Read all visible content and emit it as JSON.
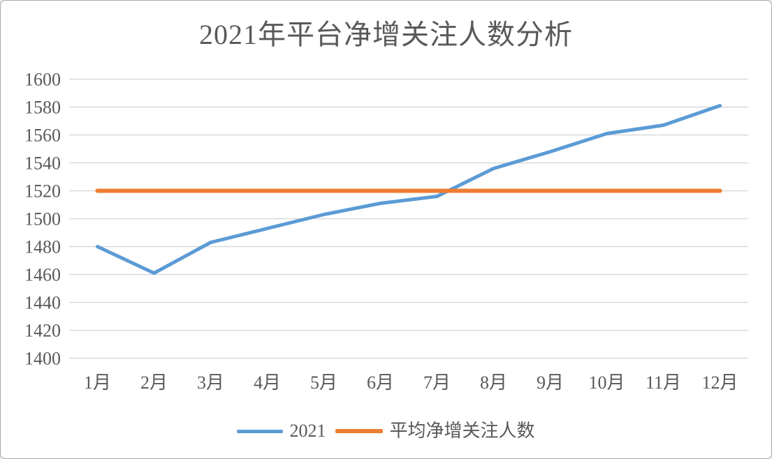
{
  "window": {
    "background": "#ffffff",
    "border_color": "#a9a9a9"
  },
  "chart_data": {
    "type": "line",
    "title": "2021年平台净增关注人数分析",
    "categories": [
      "1月",
      "2月",
      "3月",
      "4月",
      "5月",
      "6月",
      "7月",
      "8月",
      "9月",
      "10月",
      "11月",
      "12月"
    ],
    "series": [
      {
        "name": "2021",
        "color": "#5B9BD5",
        "stroke_width": 5,
        "values": [
          1480,
          1461,
          1483,
          1493,
          1503,
          1511,
          1516,
          1536,
          1548,
          1561,
          1567,
          1581
        ]
      },
      {
        "name": "平均净增关注人数",
        "color": "#ED7D31",
        "stroke_width": 6,
        "values": [
          1520,
          1520,
          1520,
          1520,
          1520,
          1520,
          1520,
          1520,
          1520,
          1520,
          1520,
          1520
        ]
      }
    ],
    "ylim": [
      1400,
      1600
    ],
    "yticks": [
      1400,
      1420,
      1440,
      1460,
      1480,
      1500,
      1520,
      1540,
      1560,
      1580,
      1600
    ],
    "xlabel": "",
    "ylabel": "",
    "grid": true,
    "gridline_color": "#D9D9D9",
    "axis_label_color": "#595959",
    "legend_position": "bottom"
  }
}
